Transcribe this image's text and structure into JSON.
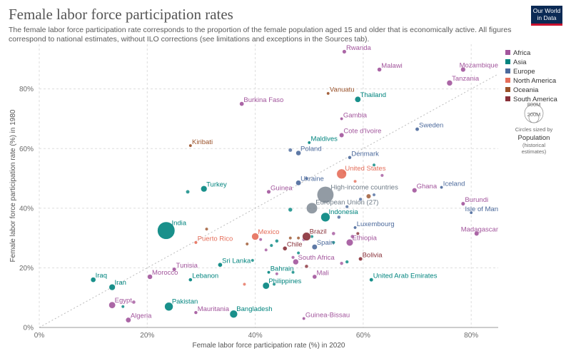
{
  "header": {
    "title": "Female labor force participation rates",
    "subtitle": "The female labor force participation rate corresponds to the proportion of the female population aged 15 and older that is economically active. All figures correspond to national estimates, without ILO corrections (see limitations and exceptions in the Sources tab).",
    "logo_line1": "Our World",
    "logo_line2": "in Data"
  },
  "colors": {
    "Africa": "#a2559c",
    "Asia": "#00847e",
    "Europe": "#4c6a9c",
    "North America": "#e56e5a",
    "Oceania": "#9a5129",
    "South America": "#883039",
    "aggregate": "#6d7a86"
  },
  "legend": {
    "regions": [
      "Africa",
      "Asia",
      "Europe",
      "North America",
      "Oceania",
      "South America"
    ],
    "size_note_line1": "Circles sized by",
    "size_note_line2": "Population",
    "size_note_line3": "(historical",
    "size_note_line4": "estimates)",
    "size_big": "800M",
    "size_small": "200M"
  },
  "chart_data": {
    "type": "scatter",
    "xlabel": "Female labor force participation rate (%) in 2020",
    "ylabel": "Female labor force participation rate (%) in 1980",
    "xlim": [
      0,
      85
    ],
    "ylim": [
      0,
      95
    ],
    "x_ticks": [
      "0%",
      "20%",
      "40%",
      "60%",
      "80%"
    ],
    "y_ticks": [
      "0%",
      "20%",
      "40%",
      "60%",
      "80%"
    ],
    "x_tick_values": [
      0,
      20,
      40,
      60,
      80
    ],
    "y_tick_values": [
      0,
      20,
      40,
      60,
      80
    ],
    "diagonal": true,
    "grid": true,
    "points": [
      {
        "name": "Rwanda",
        "x": 56.5,
        "y": 92.5,
        "region": "Africa",
        "pop": 13
      },
      {
        "name": "Malawi",
        "x": 63.0,
        "y": 86.5,
        "region": "Africa",
        "pop": 19
      },
      {
        "name": "Mozambique",
        "x": 78.5,
        "y": 86.5,
        "region": "Africa",
        "pop": 31
      },
      {
        "name": "Tanzania",
        "x": 76.0,
        "y": 82.0,
        "region": "Africa",
        "pop": 60
      },
      {
        "name": "Vanuatu",
        "x": 53.5,
        "y": 78.5,
        "region": "Oceania",
        "pop": 1
      },
      {
        "name": "Thailand",
        "x": 59.0,
        "y": 76.5,
        "region": "Asia",
        "pop": 70
      },
      {
        "name": "Burkina Faso",
        "x": 37.5,
        "y": 75.0,
        "region": "Africa",
        "pop": 21
      },
      {
        "name": "Gambia",
        "x": 56.0,
        "y": 70.0,
        "region": "Africa",
        "pop": 2
      },
      {
        "name": "Sweden",
        "x": 70.0,
        "y": 66.5,
        "region": "Europe",
        "pop": 10
      },
      {
        "name": "Cote d'Ivoire",
        "x": 56.0,
        "y": 64.5,
        "region": "Africa",
        "pop": 27
      },
      {
        "name": "Maldives",
        "x": 50.0,
        "y": 62.0,
        "region": "Asia",
        "pop": 1
      },
      {
        "name": "Kiribati",
        "x": 28.0,
        "y": 61.0,
        "region": "Oceania",
        "pop": 1
      },
      {
        "name": "Poland",
        "x": 48.0,
        "y": 58.5,
        "region": "Europe",
        "pop": 38
      },
      {
        "name": "Denmark",
        "x": 57.5,
        "y": 57.0,
        "region": "Europe",
        "pop": 6
      },
      {
        "name": "United States",
        "x": 56.0,
        "y": 51.5,
        "region": "North America",
        "pop": 331
      },
      {
        "name": "Ukraine",
        "x": 48.0,
        "y": 48.5,
        "region": "Europe",
        "pop": 44
      },
      {
        "name": "Turkey",
        "x": 30.5,
        "y": 46.5,
        "region": "Asia",
        "pop": 84
      },
      {
        "name": "Guinea",
        "x": 42.5,
        "y": 45.5,
        "region": "Africa",
        "pop": 13
      },
      {
        "name": "Ghana",
        "x": 69.5,
        "y": 46.0,
        "region": "Africa",
        "pop": 31
      },
      {
        "name": "Iceland",
        "x": 74.5,
        "y": 47.0,
        "region": "Europe",
        "pop": 1
      },
      {
        "name": "High-income countries",
        "x": 53.0,
        "y": 44.5,
        "region": "aggregate",
        "pop": 1240
      },
      {
        "name": "European Union (27)",
        "x": 50.5,
        "y": 40.0,
        "region": "aggregate",
        "pop": 447
      },
      {
        "name": "Indonesia",
        "x": 53.0,
        "y": 37.0,
        "region": "Asia",
        "pop": 273
      },
      {
        "name": "Burundi",
        "x": 78.5,
        "y": 41.5,
        "region": "Africa",
        "pop": 12
      },
      {
        "name": "Isle of Man",
        "x": 80.0,
        "y": 38.5,
        "region": "Europe",
        "pop": 1
      },
      {
        "name": "Luxembourg",
        "x": 58.5,
        "y": 33.5,
        "region": "Europe",
        "pop": 1
      },
      {
        "name": "India",
        "x": 23.5,
        "y": 32.5,
        "region": "Asia",
        "pop": 1380
      },
      {
        "name": "Madagascar",
        "x": 81.0,
        "y": 31.5,
        "region": "Africa",
        "pop": 27
      },
      {
        "name": "Mexico",
        "x": 40.0,
        "y": 30.5,
        "region": "North America",
        "pop": 128
      },
      {
        "name": "Brazil",
        "x": 49.5,
        "y": 30.5,
        "region": "South America",
        "pop": 212
      },
      {
        "name": "Puerto Rico",
        "x": 29.0,
        "y": 28.5,
        "region": "North America",
        "pop": 3
      },
      {
        "name": "Ethiopia",
        "x": 57.5,
        "y": 28.5,
        "region": "Africa",
        "pop": 114
      },
      {
        "name": "Spain",
        "x": 51.0,
        "y": 27.0,
        "region": "Europe",
        "pop": 47
      },
      {
        "name": "Chile",
        "x": 45.5,
        "y": 26.5,
        "region": "South America",
        "pop": 19
      },
      {
        "name": "South Africa",
        "x": 47.5,
        "y": 22.0,
        "region": "Africa",
        "pop": 59
      },
      {
        "name": "Bolivia",
        "x": 59.5,
        "y": 23.0,
        "region": "South America",
        "pop": 11
      },
      {
        "name": "Sri Lanka",
        "x": 33.5,
        "y": 21.0,
        "region": "Asia",
        "pop": 21
      },
      {
        "name": "Tunisia",
        "x": 25.0,
        "y": 19.5,
        "region": "Africa",
        "pop": 12
      },
      {
        "name": "Bahrain",
        "x": 42.5,
        "y": 18.5,
        "region": "Asia",
        "pop": 2
      },
      {
        "name": "Mali",
        "x": 51.0,
        "y": 17.0,
        "region": "Africa",
        "pop": 20
      },
      {
        "name": "Morocco",
        "x": 20.5,
        "y": 17.0,
        "region": "Africa",
        "pop": 37
      },
      {
        "name": "Lebanon",
        "x": 28.0,
        "y": 16.0,
        "region": "Asia",
        "pop": 7
      },
      {
        "name": "Iraq",
        "x": 10.0,
        "y": 16.0,
        "region": "Asia",
        "pop": 40
      },
      {
        "name": "United Arab Emirates",
        "x": 61.5,
        "y": 16.0,
        "region": "Asia",
        "pop": 10
      },
      {
        "name": "Philippines",
        "x": 42.0,
        "y": 14.0,
        "region": "Asia",
        "pop": 110
      },
      {
        "name": "Iran",
        "x": 13.5,
        "y": 13.5,
        "region": "Asia",
        "pop": 84
      },
      {
        "name": "Egypt",
        "x": 13.5,
        "y": 7.5,
        "region": "Africa",
        "pop": 102
      },
      {
        "name": "Pakistan",
        "x": 24.0,
        "y": 7.0,
        "region": "Asia",
        "pop": 221
      },
      {
        "name": "Mauritania",
        "x": 29.0,
        "y": 5.0,
        "region": "Africa",
        "pop": 5
      },
      {
        "name": "Bangladesh",
        "x": 36.0,
        "y": 4.5,
        "region": "Asia",
        "pop": 165
      },
      {
        "name": "Algeria",
        "x": 16.5,
        "y": 2.5,
        "region": "Africa",
        "pop": 44
      },
      {
        "name": "Guinea-Bissau",
        "x": 49.0,
        "y": 3.0,
        "region": "Africa",
        "pop": 2
      }
    ],
    "unlabeled_points": [
      {
        "x": 27.5,
        "y": 45.5,
        "region": "Asia",
        "pop": 9
      },
      {
        "x": 46.5,
        "y": 59.5,
        "region": "Europe",
        "pop": 10
      },
      {
        "x": 46.5,
        "y": 39.5,
        "region": "Asia",
        "pop": 16
      },
      {
        "x": 46.5,
        "y": 30.0,
        "region": "Oceania",
        "pop": 1
      },
      {
        "x": 41.0,
        "y": 29.5,
        "region": "Africa",
        "pop": 2
      },
      {
        "x": 44.0,
        "y": 29.0,
        "region": "Asia",
        "pop": 5
      },
      {
        "x": 42.0,
        "y": 26.0,
        "region": "Africa",
        "pop": 1
      },
      {
        "x": 43.0,
        "y": 27.5,
        "region": "Asia",
        "pop": 3
      },
      {
        "x": 48.0,
        "y": 30.0,
        "region": "Oceania",
        "pop": 1
      },
      {
        "x": 49.0,
        "y": 29.5,
        "region": "Africa",
        "pop": 4
      },
      {
        "x": 50.5,
        "y": 30.5,
        "region": "Asia",
        "pop": 2
      },
      {
        "x": 54.5,
        "y": 31.5,
        "region": "Africa",
        "pop": 6
      },
      {
        "x": 54.5,
        "y": 28.5,
        "region": "Asia",
        "pop": 3
      },
      {
        "x": 58.0,
        "y": 30.5,
        "region": "Africa",
        "pop": 8
      },
      {
        "x": 59.0,
        "y": 31.5,
        "region": "South America",
        "pop": 3
      },
      {
        "x": 55.5,
        "y": 37.0,
        "region": "Europe",
        "pop": 5
      },
      {
        "x": 57.0,
        "y": 40.5,
        "region": "Europe",
        "pop": 3
      },
      {
        "x": 59.5,
        "y": 43.0,
        "region": "Europe",
        "pop": 4
      },
      {
        "x": 61.0,
        "y": 44.0,
        "region": "Oceania",
        "pop": 25
      },
      {
        "x": 62.0,
        "y": 44.5,
        "region": "Europe",
        "pop": 2
      },
      {
        "x": 63.5,
        "y": 51.0,
        "region": "Africa",
        "pop": 3
      },
      {
        "x": 62.0,
        "y": 54.5,
        "region": "Asia",
        "pop": 1
      },
      {
        "x": 56.5,
        "y": 52.0,
        "region": "North America",
        "pop": 1
      },
      {
        "x": 58.5,
        "y": 49.0,
        "region": "North America",
        "pop": 1
      },
      {
        "x": 49.5,
        "y": 50.0,
        "region": "Europe",
        "pop": 2
      },
      {
        "x": 47.0,
        "y": 23.5,
        "region": "Africa",
        "pop": 3
      },
      {
        "x": 48.0,
        "y": 25.0,
        "region": "Asia",
        "pop": 2
      },
      {
        "x": 49.5,
        "y": 20.5,
        "region": "South America",
        "pop": 6
      },
      {
        "x": 56.0,
        "y": 21.5,
        "region": "Africa",
        "pop": 5
      },
      {
        "x": 57.0,
        "y": 22.0,
        "region": "Asia",
        "pop": 4
      },
      {
        "x": 47.0,
        "y": 18.5,
        "region": "Asia",
        "pop": 2
      },
      {
        "x": 44.0,
        "y": 18.0,
        "region": "Africa",
        "pop": 1
      },
      {
        "x": 38.0,
        "y": 14.5,
        "region": "North America",
        "pop": 1
      },
      {
        "x": 43.5,
        "y": 14.5,
        "region": "Asia",
        "pop": 1
      },
      {
        "x": 39.5,
        "y": 22.5,
        "region": "Asia",
        "pop": 1
      },
      {
        "x": 38.5,
        "y": 28.0,
        "region": "Oceania",
        "pop": 1
      },
      {
        "x": 31.0,
        "y": 33.0,
        "region": "Oceania",
        "pop": 1
      },
      {
        "x": 15.5,
        "y": 7.0,
        "region": "Asia",
        "pop": 2
      },
      {
        "x": 17.5,
        "y": 8.5,
        "region": "Africa",
        "pop": 7
      }
    ]
  }
}
